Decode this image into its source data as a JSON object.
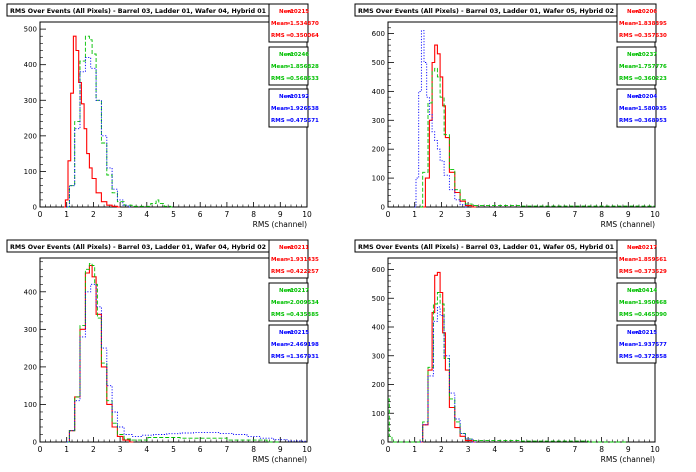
{
  "chart_data": [
    {
      "type": "line",
      "title": "RMS Over Events (All Pixels) - Barrel 03, Ladder 01, Wafer 04, Hybrid 01",
      "xlabel": "RMS (channel)",
      "ylabel": "",
      "xlim": [
        0,
        10
      ],
      "ylim": [
        0,
        520
      ],
      "xticks": [
        "0",
        "1",
        "2",
        "3",
        "4",
        "5",
        "6",
        "7",
        "8",
        "9",
        "10"
      ],
      "yticks": [
        "0",
        "100",
        "200",
        "300",
        "400",
        "500"
      ],
      "series": [
        {
          "color": "#ff0000",
          "style": "solid",
          "stats": [
            {
              "label": "Nent",
              "value": "10215"
            },
            {
              "label": "Mean",
              "value": "1.534870"
            },
            {
              "label": "RMS",
              "value": "0.350064"
            }
          ],
          "x": [
            0.9,
            1.0,
            1.1,
            1.2,
            1.3,
            1.4,
            1.5,
            1.6,
            1.7,
            1.8,
            1.9,
            2.0,
            2.2,
            2.4,
            2.6,
            2.8,
            3.0
          ],
          "y": [
            0,
            20,
            130,
            320,
            480,
            440,
            350,
            290,
            220,
            150,
            110,
            80,
            40,
            15,
            5,
            2,
            0
          ]
        },
        {
          "color": "#00c000",
          "style": "dashed",
          "stats": [
            {
              "label": "Nent",
              "value": "10246"
            },
            {
              "label": "Mean",
              "value": "1.856828"
            },
            {
              "label": "RMS",
              "value": "0.568533"
            }
          ],
          "x": [
            1.0,
            1.2,
            1.4,
            1.6,
            1.8,
            1.9,
            2.0,
            2.2,
            2.4,
            2.6,
            2.8,
            3.0,
            3.3,
            3.6,
            4.0,
            4.3,
            4.4,
            4.5,
            4.8,
            5.0
          ],
          "y": [
            0,
            60,
            240,
            410,
            480,
            470,
            430,
            300,
            180,
            90,
            40,
            15,
            5,
            2,
            2,
            10,
            20,
            10,
            2,
            0
          ]
        },
        {
          "color": "#0000ff",
          "style": "dotted",
          "stats": [
            {
              "label": "Nent",
              "value": "10192"
            },
            {
              "label": "Mean",
              "value": "1.926538"
            },
            {
              "label": "RMS",
              "value": "0.475571"
            }
          ],
          "x": [
            1.0,
            1.2,
            1.4,
            1.6,
            1.8,
            2.0,
            2.2,
            2.4,
            2.6,
            2.8,
            3.0,
            3.2,
            3.4
          ],
          "y": [
            0,
            60,
            220,
            380,
            420,
            390,
            300,
            200,
            110,
            50,
            20,
            5,
            0
          ]
        }
      ]
    },
    {
      "type": "line",
      "title": "RMS Over Events (All Pixels) - Barrel 03, Ladder 01, Wafer 05, Hybrid 02",
      "xlabel": "RMS (channel)",
      "ylabel": "",
      "xlim": [
        0,
        10
      ],
      "ylim": [
        0,
        640
      ],
      "xticks": [
        "0",
        "1",
        "2",
        "3",
        "4",
        "5",
        "6",
        "7",
        "8",
        "9",
        "10"
      ],
      "yticks": [
        "0",
        "100",
        "200",
        "300",
        "400",
        "500",
        "600"
      ],
      "series": [
        {
          "color": "#ff0000",
          "style": "solid",
          "stats": [
            {
              "label": "Nent",
              "value": "10206"
            },
            {
              "label": "Mean",
              "value": "1.838395"
            },
            {
              "label": "RMS",
              "value": "0.357630"
            }
          ],
          "x": [
            1.3,
            1.5,
            1.6,
            1.7,
            1.8,
            1.9,
            2.0,
            2.1,
            2.2,
            2.4,
            2.6,
            2.8,
            3.0,
            3.3
          ],
          "y": [
            0,
            100,
            300,
            500,
            560,
            530,
            450,
            350,
            240,
            120,
            50,
            20,
            5,
            0
          ]
        },
        {
          "color": "#00c000",
          "style": "dashed",
          "stats": [
            {
              "label": "Nent",
              "value": "10237"
            },
            {
              "label": "Mean",
              "value": "1.757776"
            },
            {
              "label": "RMS",
              "value": "0.360223"
            }
          ],
          "x": [
            1.2,
            1.4,
            1.6,
            1.7,
            1.8,
            1.9,
            2.0,
            2.2,
            2.4,
            2.6,
            2.8,
            3.0,
            3.3,
            4.0,
            6.0,
            9.0,
            10.0
          ],
          "y": [
            0,
            120,
            360,
            470,
            480,
            450,
            380,
            250,
            130,
            60,
            25,
            10,
            5,
            5,
            3,
            3,
            3
          ]
        },
        {
          "color": "#0000ff",
          "style": "dotted",
          "stats": [
            {
              "label": "Nent",
              "value": "10204"
            },
            {
              "label": "Mean",
              "value": "1.580935"
            },
            {
              "label": "RMS",
              "value": "0.368953"
            }
          ],
          "x": [
            1.0,
            1.1,
            1.2,
            1.3,
            1.4,
            1.5,
            1.6,
            1.7,
            1.8,
            1.9,
            2.0,
            2.2,
            2.4,
            2.6,
            2.8,
            3.0
          ],
          "y": [
            0,
            100,
            400,
            610,
            500,
            380,
            320,
            260,
            230,
            200,
            160,
            110,
            60,
            25,
            8,
            0
          ]
        }
      ]
    },
    {
      "type": "line",
      "title": "RMS Over Events (All Pixels) - Barrel 03, Ladder 01, Wafer 04, Hybrid 02",
      "xlabel": "RMS (channel)",
      "ylabel": "",
      "xlim": [
        0,
        10
      ],
      "ylim": [
        0,
        490
      ],
      "xticks": [
        "0",
        "1",
        "2",
        "3",
        "4",
        "5",
        "6",
        "7",
        "8",
        "9",
        "10"
      ],
      "yticks": [
        "0",
        "100",
        "200",
        "300",
        "400"
      ],
      "series": [
        {
          "color": "#ff0000",
          "style": "solid",
          "stats": [
            {
              "label": "Nent",
              "value": "10211"
            },
            {
              "label": "Mean",
              "value": "1.931435"
            },
            {
              "label": "RMS",
              "value": "0.422257"
            }
          ],
          "x": [
            1.0,
            1.2,
            1.4,
            1.6,
            1.8,
            1.9,
            2.0,
            2.2,
            2.4,
            2.6,
            2.8,
            3.0,
            3.2,
            3.5
          ],
          "y": [
            0,
            30,
            120,
            300,
            450,
            470,
            440,
            340,
            200,
            100,
            40,
            15,
            5,
            0
          ]
        },
        {
          "color": "#00c000",
          "style": "dashed",
          "stats": [
            {
              "label": "Nent",
              "value": "10217"
            },
            {
              "label": "Mean",
              "value": "2.009534"
            },
            {
              "label": "RMS",
              "value": "0.435385"
            }
          ],
          "x": [
            1.0,
            1.2,
            1.4,
            1.6,
            1.8,
            1.9,
            2.0,
            2.1,
            2.2,
            2.4,
            2.6,
            2.8,
            3.0,
            3.3,
            3.6,
            4.5,
            6.0,
            8.0,
            9.0
          ],
          "y": [
            0,
            30,
            120,
            310,
            460,
            475,
            470,
            420,
            330,
            210,
            110,
            50,
            20,
            8,
            5,
            12,
            10,
            5,
            0
          ]
        },
        {
          "color": "#0000ff",
          "style": "dotted",
          "stats": [
            {
              "label": "Nent",
              "value": "10215"
            },
            {
              "label": "Mean",
              "value": "2.469198"
            },
            {
              "label": "RMS",
              "value": "1.367931"
            }
          ],
          "x": [
            1.0,
            1.2,
            1.4,
            1.6,
            1.8,
            2.0,
            2.2,
            2.4,
            2.6,
            2.8,
            3.0,
            3.3,
            3.6,
            4.0,
            4.5,
            5.0,
            5.5,
            6.0,
            6.5,
            7.0,
            7.5,
            8.0,
            8.5,
            9.0,
            9.5,
            10.0
          ],
          "y": [
            0,
            30,
            110,
            280,
            400,
            420,
            360,
            250,
            150,
            80,
            40,
            20,
            15,
            18,
            20,
            22,
            24,
            25,
            25,
            23,
            20,
            15,
            10,
            6,
            3,
            2
          ]
        }
      ]
    },
    {
      "type": "line",
      "title": "RMS Over Events (All Pixels) - Barrel 03, Ladder 01, Wafer 05, Hybrid 01",
      "xlabel": "RMS (channel)",
      "ylabel": "",
      "xlim": [
        0,
        10
      ],
      "ylim": [
        0,
        640
      ],
      "xticks": [
        "0",
        "1",
        "2",
        "3",
        "4",
        "5",
        "6",
        "7",
        "8",
        "9",
        "10"
      ],
      "yticks": [
        "0",
        "100",
        "200",
        "300",
        "400",
        "500",
        "600"
      ],
      "series": [
        {
          "color": "#ff0000",
          "style": "solid",
          "stats": [
            {
              "label": "Nent",
              "value": "10217"
            },
            {
              "label": "Mean",
              "value": "1.859561"
            },
            {
              "label": "RMS",
              "value": "0.373529"
            }
          ],
          "x": [
            1.2,
            1.4,
            1.6,
            1.7,
            1.8,
            1.9,
            2.0,
            2.1,
            2.2,
            2.4,
            2.6,
            2.8,
            3.0,
            3.3
          ],
          "y": [
            0,
            60,
            250,
            450,
            580,
            590,
            520,
            380,
            250,
            120,
            50,
            20,
            5,
            0
          ]
        },
        {
          "color": "#00c000",
          "style": "dashed",
          "stats": [
            {
              "label": "Nent",
              "value": "10414"
            },
            {
              "label": "Mean",
              "value": "1.950468"
            },
            {
              "label": "RMS",
              "value": "0.465090"
            }
          ],
          "x": [
            0.0,
            0.1,
            0.2,
            1.2,
            1.4,
            1.6,
            1.8,
            1.9,
            2.0,
            2.2,
            2.4,
            2.6,
            2.8,
            3.0,
            3.3,
            4.0,
            6.0,
            9.0
          ],
          "y": [
            150,
            20,
            0,
            0,
            70,
            260,
            480,
            520,
            480,
            290,
            150,
            70,
            30,
            10,
            5,
            5,
            3,
            0
          ]
        },
        {
          "color": "#0000ff",
          "style": "dotted",
          "stats": [
            {
              "label": "Nent",
              "value": "10215"
            },
            {
              "label": "Mean",
              "value": "1.937577"
            },
            {
              "label": "RMS",
              "value": "0.372858"
            }
          ],
          "x": [
            1.2,
            1.4,
            1.6,
            1.8,
            1.9,
            2.0,
            2.2,
            2.4,
            2.6,
            2.8,
            3.0,
            3.3
          ],
          "y": [
            0,
            60,
            230,
            420,
            470,
            440,
            300,
            170,
            80,
            30,
            10,
            0
          ]
        }
      ]
    }
  ]
}
